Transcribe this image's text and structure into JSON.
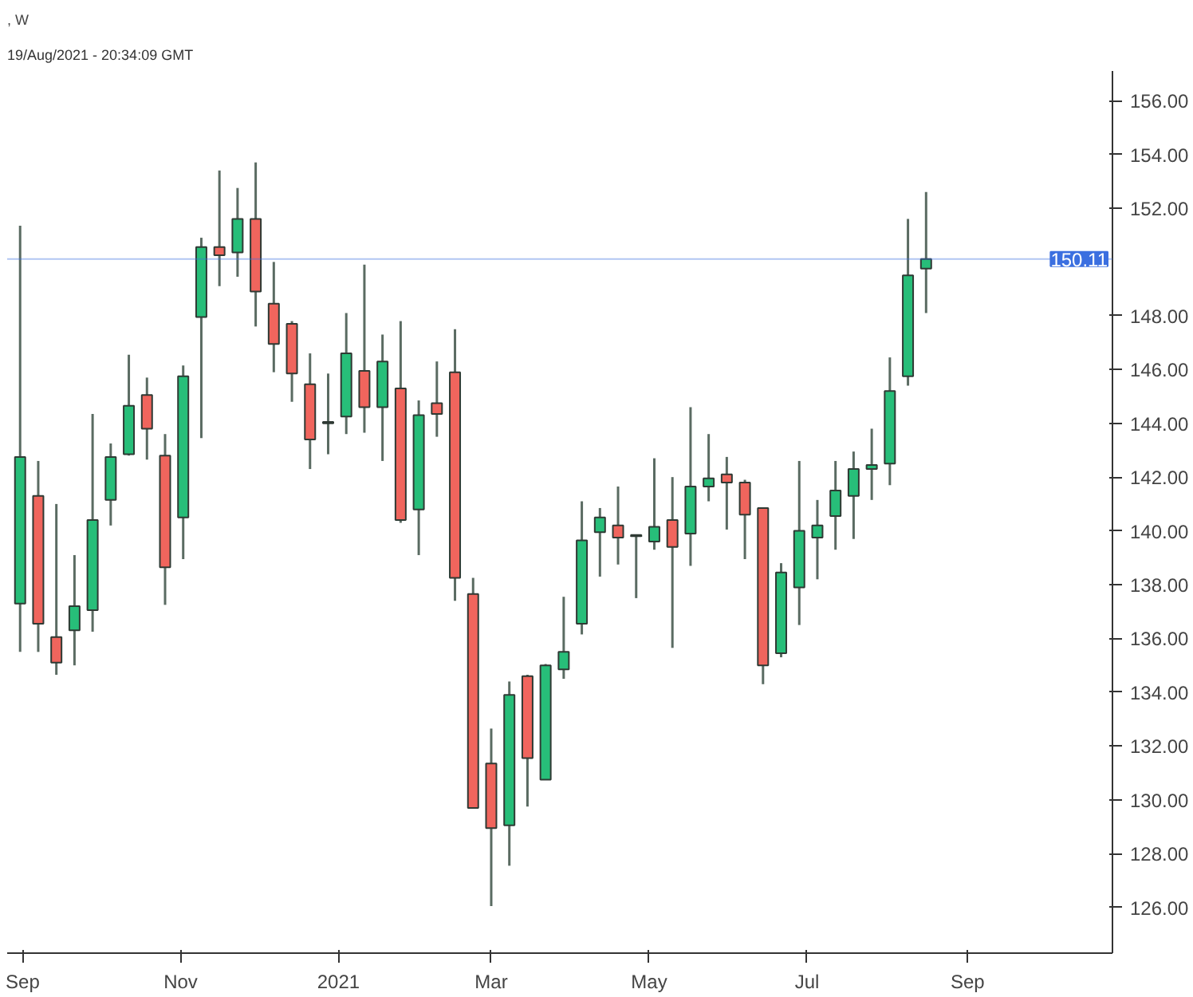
{
  "chart_data": {
    "type": "candlestick",
    "title": ", W",
    "annotations": [
      "19/Aug/2021 - 20:34:09 GMT"
    ],
    "x": [
      "2020-08-31",
      "2020-09-07",
      "2020-09-14",
      "2020-09-21",
      "2020-09-28",
      "2020-10-05",
      "2020-10-12",
      "2020-10-19",
      "2020-10-26",
      "2020-11-02",
      "2020-11-09",
      "2020-11-16",
      "2020-11-23",
      "2020-11-30",
      "2020-12-07",
      "2020-12-14",
      "2020-12-21",
      "2020-12-28",
      "2021-01-04",
      "2021-01-11",
      "2021-01-18",
      "2021-01-25",
      "2021-02-01",
      "2021-02-08",
      "2021-02-15",
      "2021-02-22",
      "2021-03-01",
      "2021-03-08",
      "2021-03-15",
      "2021-03-22",
      "2021-03-29",
      "2021-04-05",
      "2021-04-12",
      "2021-04-19",
      "2021-04-26",
      "2021-05-03",
      "2021-05-10",
      "2021-05-17",
      "2021-05-24",
      "2021-05-31",
      "2021-06-07",
      "2021-06-14",
      "2021-06-21",
      "2021-06-28",
      "2021-07-05",
      "2021-07-12",
      "2021-07-19",
      "2021-07-26",
      "2021-08-02",
      "2021-08-09",
      "2021-08-16"
    ],
    "ohlc": [
      [
        137.3,
        151.35,
        135.5,
        142.75
      ],
      [
        141.3,
        142.6,
        135.5,
        136.55
      ],
      [
        136.05,
        141.0,
        134.65,
        135.1
      ],
      [
        136.3,
        139.1,
        135.0,
        137.2
      ],
      [
        137.05,
        144.35,
        136.25,
        140.4
      ],
      [
        141.15,
        143.25,
        140.2,
        142.75
      ],
      [
        142.85,
        146.55,
        142.8,
        144.65
      ],
      [
        145.05,
        145.7,
        142.65,
        143.8
      ],
      [
        142.8,
        143.6,
        137.25,
        138.65
      ],
      [
        140.5,
        146.15,
        138.95,
        145.75
      ],
      [
        147.95,
        150.9,
        143.45,
        150.55
      ],
      [
        150.55,
        153.4,
        149.1,
        150.25
      ],
      [
        150.35,
        152.75,
        149.45,
        151.6
      ],
      [
        151.6,
        153.7,
        147.6,
        148.9
      ],
      [
        148.45,
        150.0,
        145.9,
        146.95
      ],
      [
        147.7,
        147.8,
        144.8,
        145.85
      ],
      [
        145.45,
        146.6,
        142.3,
        143.4
      ],
      [
        144.0,
        145.85,
        142.85,
        144.05
      ],
      [
        144.25,
        148.1,
        143.6,
        146.6
      ],
      [
        145.95,
        149.9,
        143.65,
        144.6
      ],
      [
        144.6,
        147.3,
        142.6,
        146.3
      ],
      [
        145.3,
        147.8,
        140.3,
        140.4
      ],
      [
        140.8,
        144.85,
        139.1,
        144.3
      ],
      [
        144.75,
        146.3,
        143.5,
        144.35
      ],
      [
        145.9,
        147.5,
        137.4,
        138.25
      ],
      [
        137.65,
        138.25,
        129.7,
        129.7
      ],
      [
        131.35,
        132.65,
        126.05,
        128.95
      ],
      [
        129.05,
        134.4,
        127.55,
        133.9
      ],
      [
        134.6,
        134.65,
        129.75,
        131.55
      ],
      [
        130.75,
        135.05,
        130.75,
        135.0
      ],
      [
        134.85,
        137.55,
        134.5,
        135.5
      ],
      [
        136.55,
        141.1,
        136.15,
        139.65
      ],
      [
        139.95,
        140.85,
        138.3,
        140.5
      ],
      [
        140.2,
        141.65,
        138.75,
        139.75
      ],
      [
        139.8,
        139.85,
        137.5,
        139.85
      ],
      [
        139.6,
        142.7,
        139.3,
        140.15
      ],
      [
        140.4,
        142.0,
        135.65,
        139.4
      ],
      [
        139.9,
        144.6,
        138.7,
        141.65
      ],
      [
        141.65,
        143.6,
        141.1,
        141.95
      ],
      [
        142.1,
        142.75,
        140.05,
        141.8
      ],
      [
        141.8,
        141.9,
        138.95,
        140.6
      ],
      [
        140.85,
        140.85,
        134.3,
        135.0
      ],
      [
        135.45,
        138.8,
        135.3,
        138.45
      ],
      [
        137.9,
        142.6,
        136.5,
        140.0
      ],
      [
        139.75,
        141.15,
        138.2,
        140.2
      ],
      [
        140.55,
        142.6,
        139.3,
        141.5
      ],
      [
        141.3,
        142.95,
        139.7,
        142.3
      ],
      [
        142.3,
        143.8,
        141.15,
        142.45
      ],
      [
        142.5,
        146.45,
        141.7,
        145.2
      ],
      [
        145.75,
        151.6,
        145.4,
        149.5
      ],
      [
        149.75,
        152.6,
        148.1,
        150.11
      ]
    ],
    "colors": [
      "#27be79",
      "#f0655d",
      "#f0655d",
      "#27be79",
      "#27be79",
      "#27be79",
      "#27be79",
      "#f0655d",
      "#f0655d",
      "#27be79",
      "#27be79",
      "#f0655d",
      "#27be79",
      "#f0655d",
      "#f0655d",
      "#f0655d",
      "#f0655d",
      "#27be79",
      "#27be79",
      "#f0655d",
      "#27be79",
      "#f0655d",
      "#27be79",
      "#f0655d",
      "#f0655d",
      "#f0655d",
      "#f0655d",
      "#27be79",
      "#f0655d",
      "#27be79",
      "#27be79",
      "#27be79",
      "#27be79",
      "#f0655d",
      "#27be79",
      "#27be79",
      "#f0655d",
      "#27be79",
      "#27be79",
      "#f0655d",
      "#f0655d",
      "#f0655d",
      "#27be79",
      "#27be79",
      "#27be79",
      "#27be79",
      "#27be79",
      "#27be79",
      "#27be79",
      "#27be79",
      "#27be79"
    ],
    "xlim": [
      "2020-08-26",
      "2021-10-27"
    ],
    "xticks": [
      {
        "value": "2020-09-01",
        "label": "Sep"
      },
      {
        "value": "2020-11-01",
        "label": "Nov"
      },
      {
        "value": "2021-01-01",
        "label": "2021"
      },
      {
        "value": "2021-03-01",
        "label": "Mar"
      },
      {
        "value": "2021-05-01",
        "label": "May"
      },
      {
        "value": "2021-07-01",
        "label": "Jul"
      },
      {
        "value": "2021-09-01",
        "label": "Sep"
      }
    ],
    "ylim": [
      124.3,
      157.1
    ],
    "yticks": [
      {
        "value": 126,
        "label": "126.00"
      },
      {
        "value": 128,
        "label": "128.00"
      },
      {
        "value": 130,
        "label": "130.00"
      },
      {
        "value": 132,
        "label": "132.00"
      },
      {
        "value": 134,
        "label": "134.00"
      },
      {
        "value": 136,
        "label": "136.00"
      },
      {
        "value": 138,
        "label": "138.00"
      },
      {
        "value": 140,
        "label": "140.00"
      },
      {
        "value": 142,
        "label": "142.00"
      },
      {
        "value": 144,
        "label": "144.00"
      },
      {
        "value": 146,
        "label": "146.00"
      },
      {
        "value": 148,
        "label": "148.00"
      },
      {
        "value": 152,
        "label": "152.00"
      },
      {
        "value": 154,
        "label": "154.00"
      },
      {
        "value": 156,
        "label": "156.00"
      }
    ],
    "ref_lines": [
      {
        "axis": "y",
        "value": 150.11,
        "label": "150.11",
        "color": "#3b6fe0"
      }
    ],
    "grid": false
  }
}
